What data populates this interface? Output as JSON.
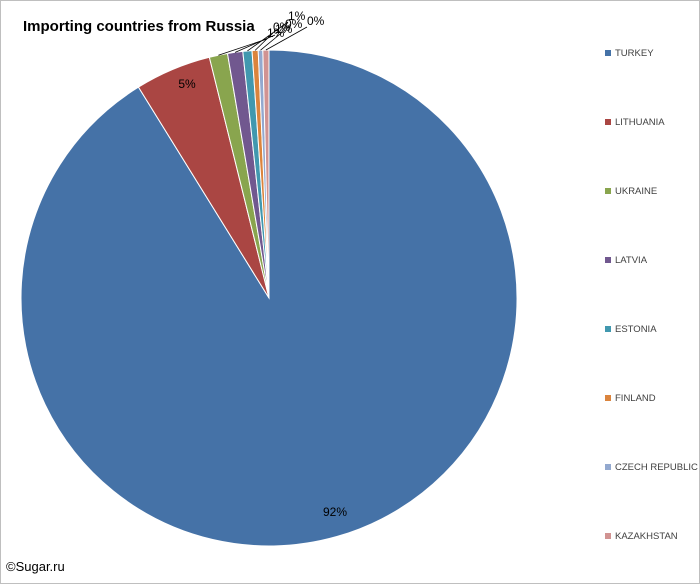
{
  "chart_data": {
    "type": "pie",
    "title": "Importing countries from Russia",
    "legend_position": "right",
    "slices": [
      {
        "name": "TURKEY",
        "value": 92,
        "label": "92%",
        "color": "#4572A7"
      },
      {
        "name": "LITHUANIA",
        "value": 5,
        "label": "5%",
        "color": "#AA4643"
      },
      {
        "name": "UKRAINE",
        "value": 1.2,
        "label": "1%",
        "color": "#89A54E"
      },
      {
        "name": "LATVIA",
        "value": 1.0,
        "label": "1%",
        "color": "#71588F"
      },
      {
        "name": "ESTONIA",
        "value": 0.6,
        "label": "1%",
        "color": "#4198AF"
      },
      {
        "name": "FINLAND",
        "value": 0.4,
        "label": "0%",
        "color": "#DB843D"
      },
      {
        "name": "CZECH REPUBLIC",
        "value": 0.3,
        "label": "0%",
        "color": "#93A9CF"
      },
      {
        "name": "KAZAKHSTAN",
        "value": 0.4,
        "label": "0%",
        "color": "#D19392"
      }
    ]
  },
  "footer": {
    "copyright": "©Sugar.ru"
  }
}
